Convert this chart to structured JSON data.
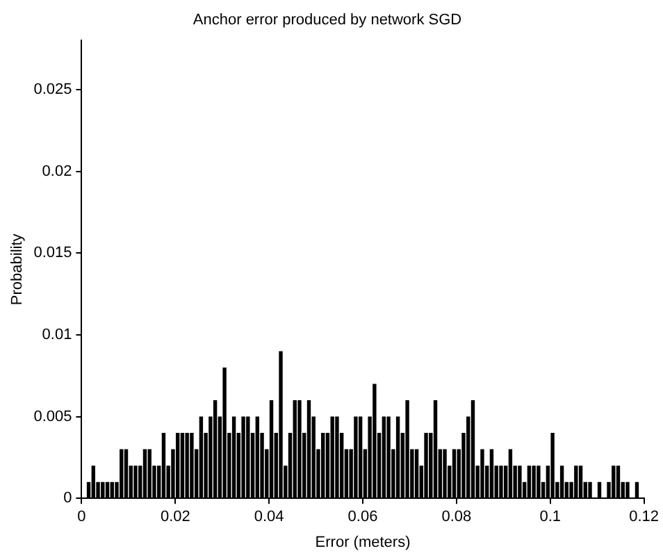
{
  "chart_data": {
    "type": "histogram",
    "title": "Anchor error produced by network SGD",
    "xlabel": "Error (meters)",
    "ylabel": "Probability",
    "color": "#000000",
    "bins": [
      0,
      0.001,
      0.002,
      0.003,
      0.004,
      0.005,
      0.006,
      0.007,
      0.008,
      0.009,
      0.01,
      0.011,
      0.012,
      0.013,
      0.014,
      0.015,
      0.016,
      0.017,
      0.018,
      0.019,
      0.02,
      0.021,
      0.022,
      0.023,
      0.024,
      0.025,
      0.026,
      0.027,
      0.028,
      0.029,
      0.03,
      0.031,
      0.032,
      0.033,
      0.034,
      0.035,
      0.036,
      0.037,
      0.038,
      0.039,
      0.04,
      0.041,
      0.042,
      0.043,
      0.044,
      0.045,
      0.046,
      0.047,
      0.048,
      0.049,
      0.05,
      0.051,
      0.052,
      0.053,
      0.054,
      0.055,
      0.056,
      0.057,
      0.058,
      0.059,
      0.06,
      0.061,
      0.062,
      0.063,
      0.064,
      0.065,
      0.066,
      0.067,
      0.068,
      0.069,
      0.07,
      0.071,
      0.072,
      0.073,
      0.074,
      0.075,
      0.076,
      0.077,
      0.078,
      0.079,
      0.08,
      0.081,
      0.082,
      0.083,
      0.084,
      0.085,
      0.086,
      0.087,
      0.088,
      0.089,
      0.09,
      0.091,
      0.092,
      0.093,
      0.094,
      0.095,
      0.096,
      0.097,
      0.098,
      0.099,
      0.1,
      0.101,
      0.102,
      0.103,
      0.104,
      0.105,
      0.106,
      0.107,
      0.108,
      0.109,
      0.11,
      0.111,
      0.112,
      0.113,
      0.114,
      0.115,
      0.116,
      0.117,
      0.118,
      0.119,
      0.12
    ],
    "values": [
      0,
      0.001,
      0.002,
      0.001,
      0.001,
      0.001,
      0.001,
      0.001,
      0.003,
      0.003,
      0.002,
      0.002,
      0.002,
      0.003,
      0.003,
      0.002,
      0.002,
      0.004,
      0.002,
      0.003,
      0.004,
      0.004,
      0.004,
      0.004,
      0.003,
      0.005,
      0.004,
      0.005,
      0.006,
      0.005,
      0.008,
      0.004,
      0.005,
      0.004,
      0.005,
      0.005,
      0.004,
      0.005,
      0.004,
      0.003,
      0.006,
      0.004,
      0.009,
      0.002,
      0.004,
      0.006,
      0.006,
      0.004,
      0.006,
      0.005,
      0.003,
      0.004,
      0.004,
      0.005,
      0.005,
      0.004,
      0.003,
      0.003,
      0.005,
      0.005,
      0.003,
      0.005,
      0.007,
      0.004,
      0.005,
      0.005,
      0.003,
      0.005,
      0.004,
      0.006,
      0.003,
      0.003,
      0.002,
      0.004,
      0.004,
      0.006,
      0.003,
      0.003,
      0.002,
      0.003,
      0.003,
      0.004,
      0.005,
      0.006,
      0.002,
      0.003,
      0.002,
      0.003,
      0.002,
      0.002,
      0.002,
      0.003,
      0.002,
      0.002,
      0.001,
      0.002,
      0.002,
      0.002,
      0.001,
      0.002,
      0.004,
      0.001,
      0.002,
      0.001,
      0.001,
      0.002,
      0.002,
      0.001,
      0.001,
      0,
      0.001,
      0,
      0.001,
      0.002,
      0.002,
      0.001,
      0.001,
      0,
      0.001,
      0
    ],
    "xlim": [
      0,
      0.12
    ],
    "xticks": [
      0,
      0.02,
      0.04,
      0.06,
      0.08,
      0.1,
      0.12
    ],
    "ylim": [
      0,
      0.028
    ],
    "yticks": [
      0,
      0.005,
      0.01,
      0.015,
      0.02,
      0.025
    ],
    "grid": false,
    "legend": false
  }
}
